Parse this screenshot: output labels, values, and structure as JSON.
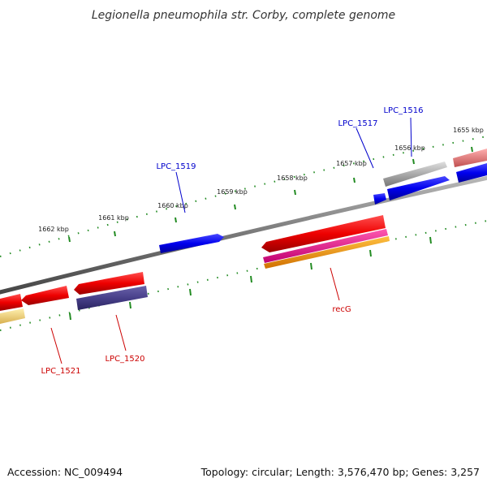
{
  "title": "Legionella pneumophila str. Corby, complete genome",
  "footer": {
    "accession": "Accession: NC_009494",
    "summary": "Topology: circular; Length: 3,576,470 bp; Genes: 3,257"
  },
  "ruler_labels": [
    "1662 kbp",
    "1661 kbp",
    "1660 kbp",
    "1659 kbp",
    "1658 kbp",
    "1657 kbp",
    "1656 kbp",
    "1655 kbp"
  ],
  "gene_labels": {
    "lpc_1516": "LPC_1516",
    "lpc_1517": "LPC_1517",
    "lpc_1519": "LPC_1519",
    "lpc_1520": "LPC_1520",
    "lpc_1521": "LPC_1521",
    "recg": "recG"
  },
  "colors": {
    "backbone": "#808080",
    "tick": "#228b22",
    "forward_label": "#0000cc",
    "reverse_label": "#cc0000",
    "forward_gene": "#0000ee",
    "reverse_gene": "#ee0000",
    "purple_gene": "#48408a",
    "gray_gene": "#aaaaaa",
    "magenta_gene": "#ee1090",
    "orange_gene": "#f59a00",
    "yellow_gene": "#efd070",
    "pink_gene": "#f08080"
  }
}
